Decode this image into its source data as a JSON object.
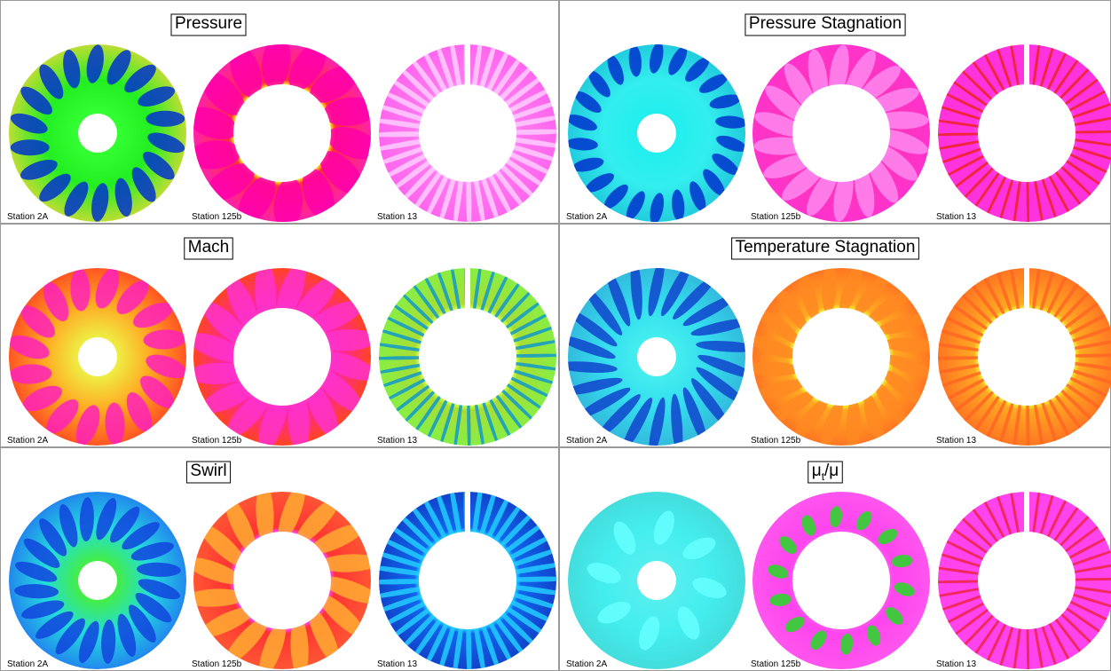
{
  "panels": [
    {
      "title": "Pressure",
      "stations": [
        "Station 2A",
        "Station 125b",
        "Station 13"
      ]
    },
    {
      "title": "Pressure Stagnation",
      "stations": [
        "Station 2A",
        "Station 125b",
        "Station 13"
      ]
    },
    {
      "title": "Mach",
      "stations": [
        "Station 2A",
        "Station 125b",
        "Station 13"
      ]
    },
    {
      "title": "Temperature Stagnation",
      "stations": [
        "Station 2A",
        "Station 125b",
        "Station 13"
      ]
    },
    {
      "title": "Swirl",
      "stations": [
        "Station 2A",
        "Station 125b",
        "Station 13"
      ]
    },
    {
      "title": "μ",
      "title_subscript": "t",
      "title_suffix": "/μ",
      "stations": [
        "Station 2A",
        "Station 125b",
        "Station 13"
      ]
    }
  ]
}
